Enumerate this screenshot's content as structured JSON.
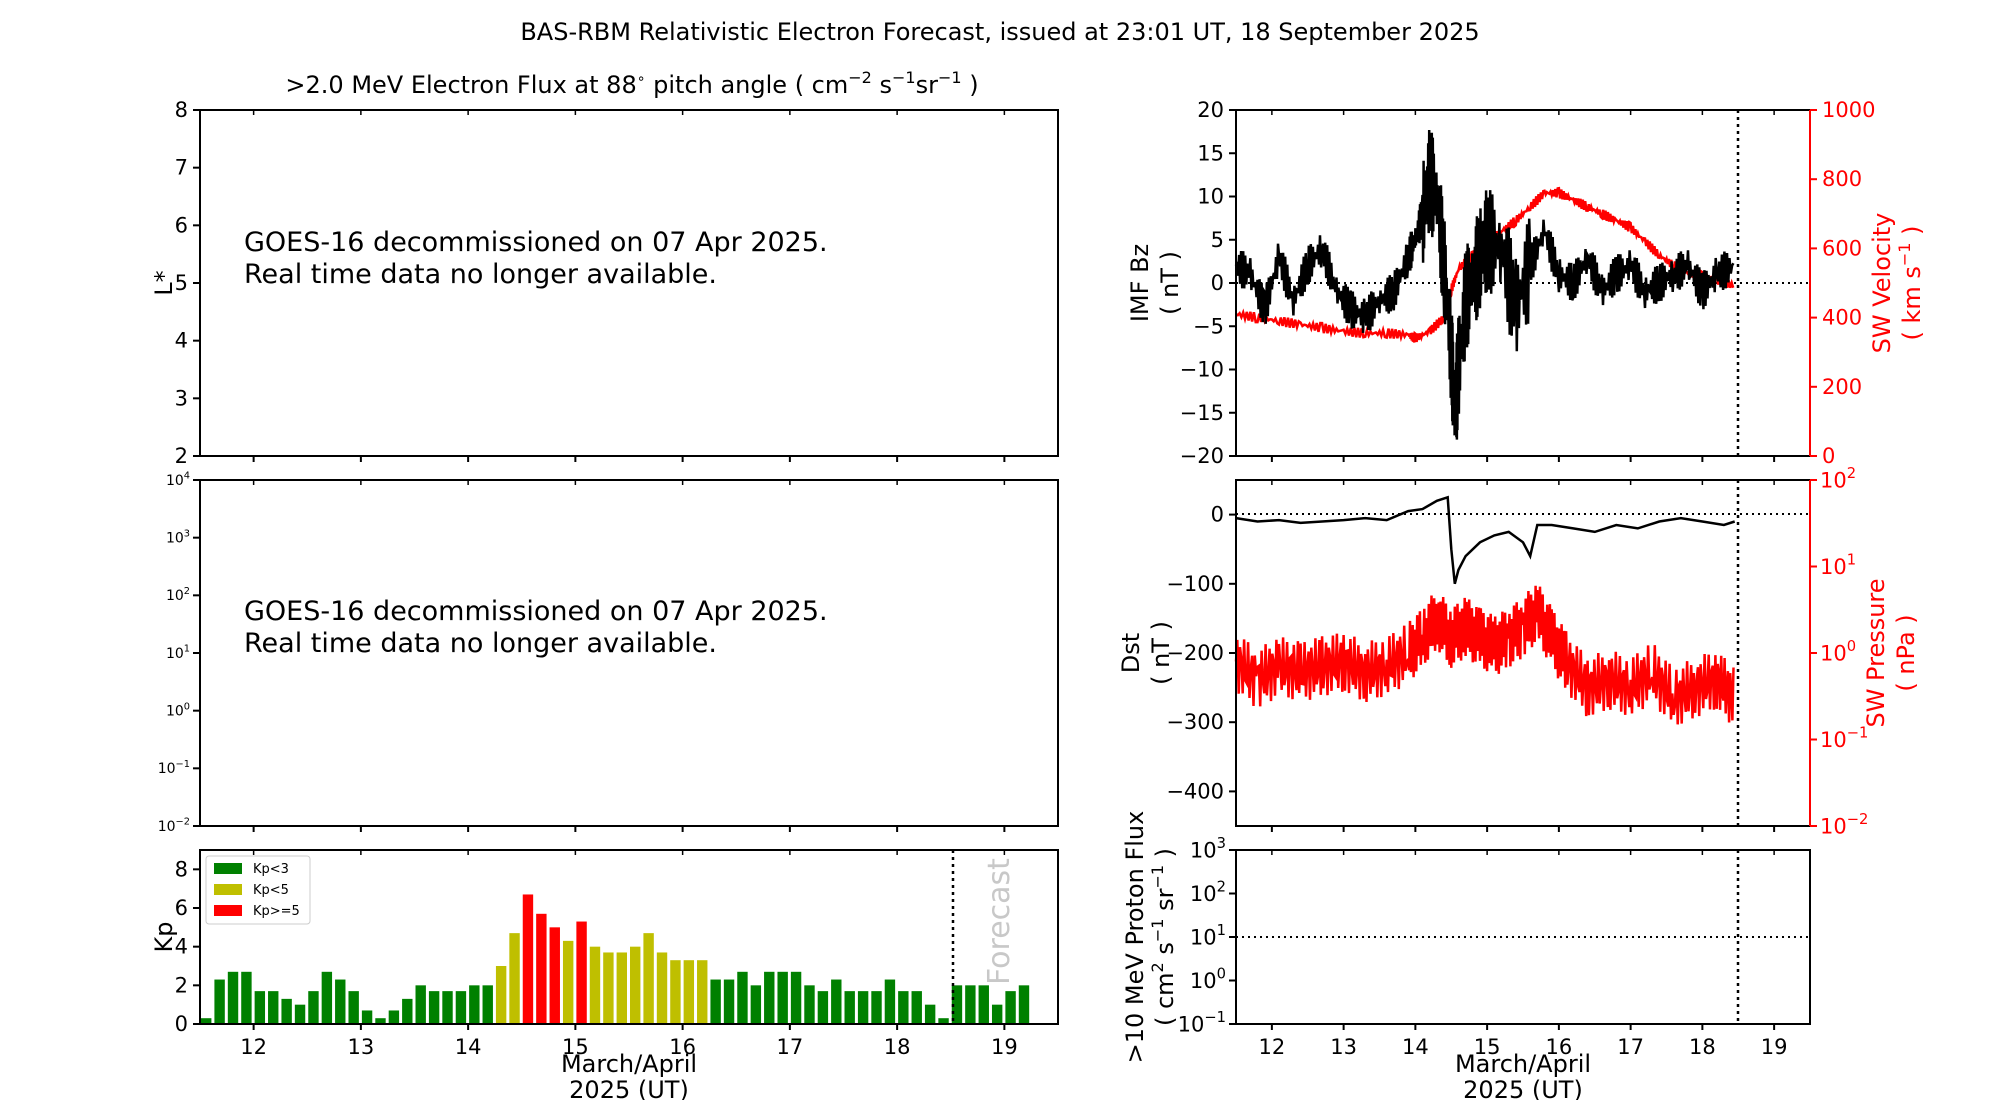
{
  "title": "BAS-RBM Relativistic Electron Forecast, issued at 23:01 UT, 18 September 2025",
  "colors": {
    "axis": "#000000",
    "red": "#ff0000",
    "kp_low": "#008000",
    "kp_mid": "#bfbf00",
    "kp_high": "#ff0000",
    "forecast_text": "#c8c8c8"
  },
  "flux_panel": {
    "title": ">2.0 MeV Electron Flux at 88",
    "title_unit": "pitch angle ( cm",
    "ylabel": "L*",
    "yticks": [
      "2",
      "3",
      "4",
      "5",
      "6",
      "7",
      "8"
    ],
    "message_line1": "GOES-16 decommissioned on 07 Apr 2025.",
    "message_line2": "Real time data no longer available."
  },
  "log_panel": {
    "yticks": [
      "10",
      "10",
      "10",
      "10",
      "10",
      "10",
      "10"
    ],
    "yexps": [
      "4",
      "3",
      "2",
      "1",
      "0",
      "−1",
      "−2"
    ],
    "message_line1": "GOES-16 decommissioned on 07 Apr 2025.",
    "message_line2": "Real time data no longer available."
  },
  "x_axis": {
    "ticks": [
      "12",
      "13",
      "14",
      "15",
      "16",
      "17",
      "18",
      "19"
    ],
    "label_line1": "March/April",
    "label_line2": "2025 (UT)"
  },
  "chart_data": [
    {
      "type": "bar",
      "name": "Kp",
      "ylabel": "Kp",
      "ylim": [
        0,
        9
      ],
      "yticks": [
        "0",
        "2",
        "4",
        "6",
        "8"
      ],
      "forecast_label": "Forecast",
      "legend": [
        "Kp<3",
        "Kp<5",
        "Kp>=5"
      ],
      "legend_position": "top-left",
      "x_start": 11.5,
      "bin_width": 0.125,
      "forecast_at": 18.5,
      "values": [
        0.3,
        2.3,
        2.7,
        2.7,
        1.7,
        1.7,
        1.3,
        1.0,
        1.7,
        2.7,
        2.3,
        1.7,
        0.7,
        0.3,
        0.7,
        1.3,
        2.0,
        1.7,
        1.7,
        1.7,
        2.0,
        2.0,
        3.0,
        4.7,
        6.7,
        5.7,
        5.0,
        4.3,
        5.3,
        4.0,
        3.7,
        3.7,
        4.0,
        4.7,
        3.7,
        3.3,
        3.3,
        3.3,
        2.3,
        2.3,
        2.7,
        2.0,
        2.7,
        2.7,
        2.7,
        2.0,
        1.7,
        2.3,
        1.7,
        1.7,
        1.7,
        2.3,
        1.7,
        1.7,
        1.0,
        0.3,
        2.0,
        2.0,
        2.0,
        1.0,
        1.7,
        2.0
      ]
    },
    {
      "type": "line",
      "series_names": [
        "IMF Bz",
        "SW Velocity"
      ],
      "ylabel_left": "IMF Bz",
      "ylabel_left_unit": "( nT )",
      "ylabel_right": "SW Velocity",
      "ylabel_right_unit": "( km s",
      "ylim": [
        -20,
        20
      ],
      "ylim_right": [
        0,
        1000
      ],
      "yticks": [
        "−20",
        "−15",
        "−10",
        "−5",
        "0",
        "5",
        "10",
        "15",
        "20"
      ],
      "yticks_right": [
        "0",
        "200",
        "400",
        "600",
        "800",
        "1000"
      ],
      "bz_x": [
        11.5,
        11.7,
        11.9,
        12.1,
        12.3,
        12.5,
        12.7,
        12.9,
        13.1,
        13.3,
        13.5,
        13.7,
        13.9,
        14.0,
        14.1,
        14.2,
        14.3,
        14.4,
        14.5,
        14.55,
        14.6,
        14.7,
        14.8,
        14.9,
        15.0,
        15.2,
        15.4,
        15.6,
        15.8,
        16.0,
        16.2,
        16.4,
        16.6,
        16.8,
        17.0,
        17.2,
        17.4,
        17.6,
        17.8,
        18.0,
        18.2,
        18.45
      ],
      "bz_y": [
        2,
        1,
        -3,
        3,
        -2,
        2,
        4,
        -1,
        -3,
        -4,
        -2,
        -1,
        3,
        5,
        8,
        12,
        10,
        2,
        -8,
        -15,
        -10,
        -2,
        0,
        3,
        5,
        4,
        -3,
        2,
        6,
        1,
        0,
        3,
        -1,
        1,
        2,
        -1,
        0,
        1,
        2,
        -1,
        1,
        2
      ],
      "v_x": [
        11.5,
        11.8,
        12.1,
        12.4,
        12.7,
        13.0,
        13.3,
        13.6,
        13.9,
        14.0,
        14.2,
        14.4,
        14.5,
        14.6,
        14.8,
        15.0,
        15.2,
        15.4,
        15.6,
        15.8,
        16.0,
        16.2,
        16.4,
        16.6,
        16.8,
        17.0,
        17.2,
        17.4,
        17.6,
        17.8,
        18.0,
        18.2,
        18.45
      ],
      "v_y": [
        410,
        400,
        390,
        380,
        370,
        360,
        355,
        355,
        350,
        340,
        360,
        400,
        480,
        540,
        580,
        620,
        650,
        680,
        720,
        760,
        760,
        740,
        720,
        700,
        680,
        660,
        620,
        580,
        550,
        530,
        520,
        510,
        490
      ]
    },
    {
      "type": "line",
      "series_names": [
        "Dst",
        "SW Pressure"
      ],
      "ylabel_left": "Dst",
      "ylabel_left_unit": "( nT )",
      "ylabel_right": "SW Pressure",
      "ylabel_right_unit": "( nPa )",
      "ylim": [
        -450,
        50
      ],
      "ylim_right": [
        0.01,
        100
      ],
      "yticks": [
        "0",
        "−100",
        "−200",
        "−300",
        "−400"
      ],
      "yticks_right": [
        "10",
        "10",
        "10",
        "10",
        "10"
      ],
      "yexps_right": [
        "2",
        "1",
        "0",
        "−1",
        "−2"
      ],
      "dst_x": [
        11.5,
        11.8,
        12.1,
        12.4,
        12.7,
        13.0,
        13.3,
        13.6,
        13.9,
        14.1,
        14.3,
        14.45,
        14.5,
        14.55,
        14.6,
        14.7,
        14.9,
        15.1,
        15.3,
        15.5,
        15.6,
        15.7,
        15.9,
        16.2,
        16.5,
        16.8,
        17.1,
        17.4,
        17.7,
        18.0,
        18.3,
        18.45
      ],
      "dst_y": [
        -5,
        -10,
        -8,
        -12,
        -10,
        -8,
        -5,
        -8,
        5,
        8,
        20,
        25,
        -50,
        -100,
        -80,
        -60,
        -40,
        -30,
        -25,
        -40,
        -60,
        -15,
        -15,
        -20,
        -25,
        -15,
        -20,
        -10,
        -5,
        -10,
        -15,
        -10
      ],
      "p_x": [
        11.5,
        11.8,
        12.1,
        12.4,
        12.7,
        13.0,
        13.3,
        13.6,
        13.9,
        14.1,
        14.3,
        14.5,
        14.7,
        14.9,
        15.1,
        15.3,
        15.5,
        15.7,
        15.9,
        16.1,
        16.4,
        16.7,
        17.0,
        17.3,
        17.6,
        17.9,
        18.2,
        18.45
      ],
      "p_y": [
        0.8,
        0.5,
        0.7,
        0.6,
        0.7,
        0.8,
        0.6,
        0.7,
        1.0,
        1.5,
        2.5,
        1.5,
        2.0,
        1.5,
        1.2,
        1.5,
        2.0,
        3.0,
        1.5,
        0.8,
        0.4,
        0.5,
        0.4,
        0.6,
        0.3,
        0.4,
        0.5,
        0.3
      ]
    },
    {
      "type": "line",
      "ylabel": ">10 MeV Proton Flux",
      "ylabel_unit": "( cm",
      "ylim": [
        0.1,
        1000
      ],
      "yticks": [
        "10",
        "10",
        "10",
        "10",
        "10"
      ],
      "yexps": [
        "3",
        "2",
        "1",
        "0",
        "−1"
      ],
      "threshold": 10
    }
  ]
}
